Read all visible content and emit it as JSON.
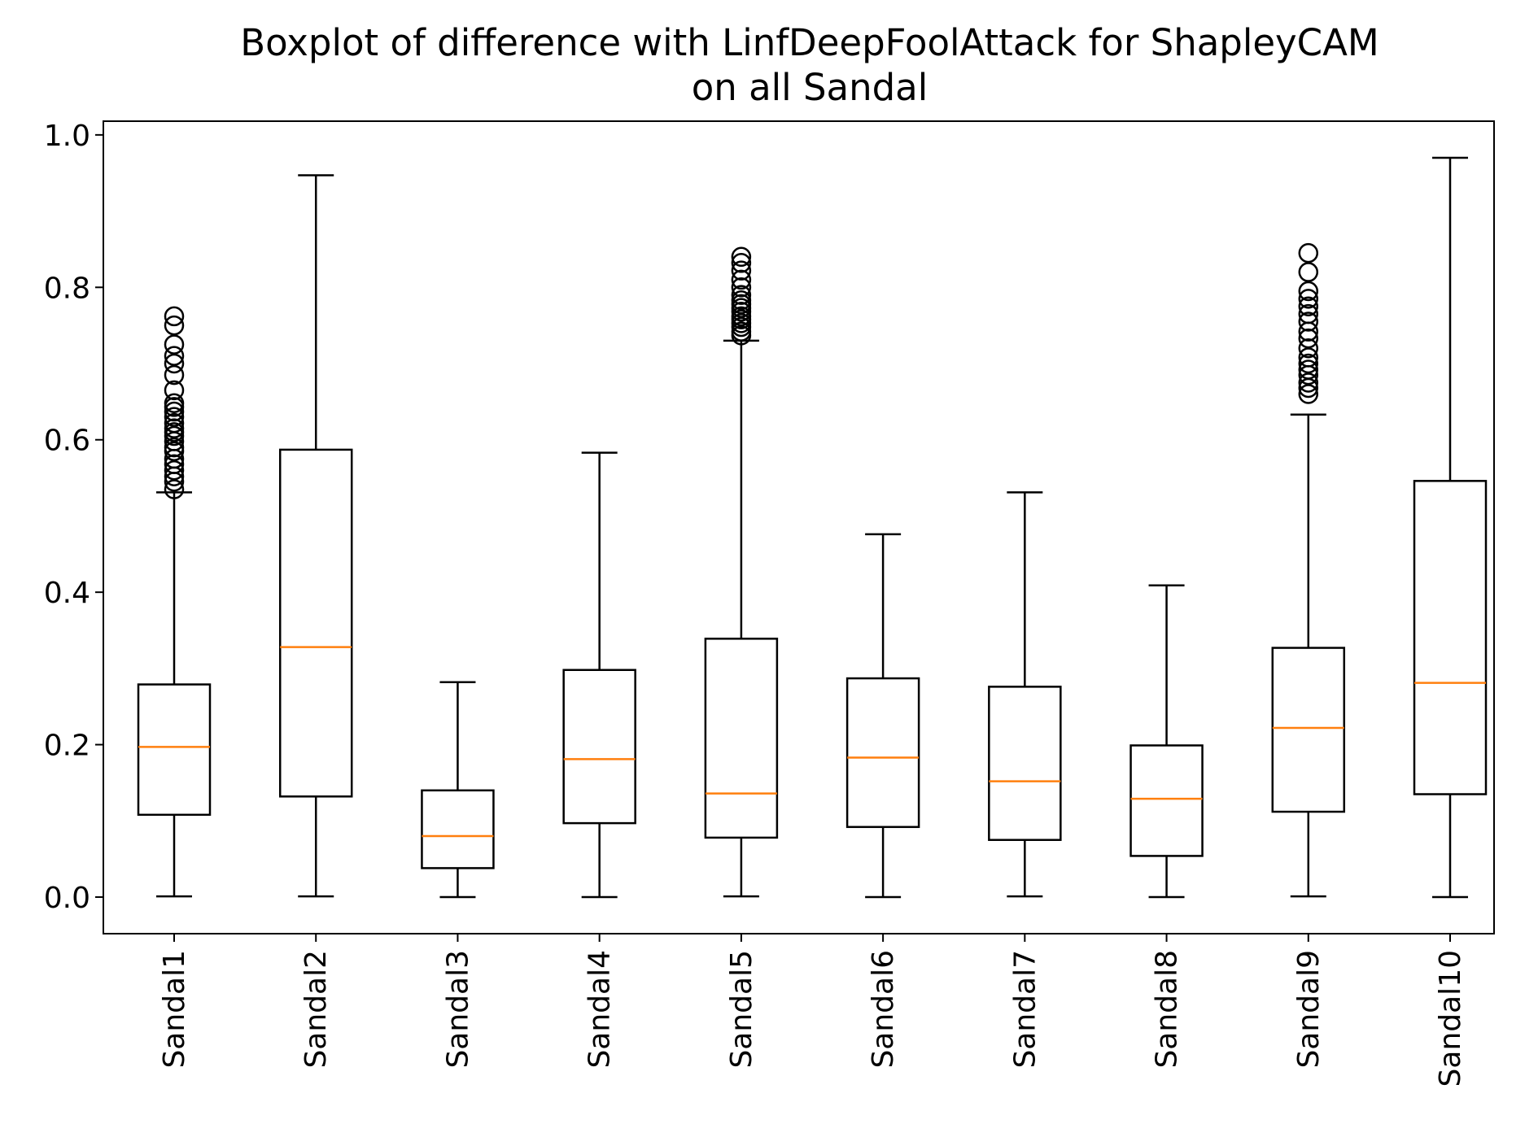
{
  "chart_data": {
    "type": "boxplot",
    "title_lines": [
      "Boxplot of difference with LinfDeepFoolAttack for ShapleyCAM",
      "on all Sandal"
    ],
    "xlabel": "",
    "ylabel": "",
    "ylim": [
      -0.048,
      1.018
    ],
    "yticks": [
      0.0,
      0.2,
      0.4,
      0.6,
      0.8,
      1.0
    ],
    "ytick_labels": [
      "0.0",
      "0.2",
      "0.4",
      "0.6",
      "0.8",
      "1.0"
    ],
    "categories": [
      "Sandal1",
      "Sandal2",
      "Sandal3",
      "Sandal4",
      "Sandal5",
      "Sandal6",
      "Sandal7",
      "Sandal8",
      "Sandal9",
      "Sandal10"
    ],
    "grid": false,
    "colors": {
      "box": "#000000",
      "median": "#ff7f0e",
      "axes": "#000000",
      "background": "#ffffff"
    },
    "boxes": [
      {
        "category": "Sandal1",
        "whisker_low": 0.001,
        "q1": 0.108,
        "median": 0.197,
        "q3": 0.279,
        "whisker_high": 0.531,
        "outliers": [
          0.535,
          0.545,
          0.552,
          0.56,
          0.568,
          0.575,
          0.585,
          0.59,
          0.598,
          0.605,
          0.61,
          0.615,
          0.622,
          0.63,
          0.637,
          0.643,
          0.648,
          0.665,
          0.685,
          0.7,
          0.71,
          0.725,
          0.75,
          0.762
        ]
      },
      {
        "category": "Sandal2",
        "whisker_low": 0.001,
        "q1": 0.132,
        "median": 0.328,
        "q3": 0.587,
        "whisker_high": 0.947,
        "outliers": []
      },
      {
        "category": "Sandal3",
        "whisker_low": 0.0,
        "q1": 0.038,
        "median": 0.08,
        "q3": 0.14,
        "whisker_high": 0.282,
        "outliers": []
      },
      {
        "category": "Sandal4",
        "whisker_low": 0.0,
        "q1": 0.097,
        "median": 0.181,
        "q3": 0.298,
        "whisker_high": 0.583,
        "outliers": []
      },
      {
        "category": "Sandal5",
        "whisker_low": 0.001,
        "q1": 0.078,
        "median": 0.136,
        "q3": 0.339,
        "whisker_high": 0.73,
        "outliers": [
          0.737,
          0.742,
          0.748,
          0.753,
          0.758,
          0.762,
          0.768,
          0.773,
          0.778,
          0.783,
          0.79,
          0.8,
          0.81,
          0.822,
          0.832,
          0.84
        ]
      },
      {
        "category": "Sandal6",
        "whisker_low": 0.0,
        "q1": 0.092,
        "median": 0.183,
        "q3": 0.287,
        "whisker_high": 0.476,
        "outliers": []
      },
      {
        "category": "Sandal7",
        "whisker_low": 0.001,
        "q1": 0.075,
        "median": 0.152,
        "q3": 0.276,
        "whisker_high": 0.531,
        "outliers": []
      },
      {
        "category": "Sandal8",
        "whisker_low": 0.0,
        "q1": 0.054,
        "median": 0.129,
        "q3": 0.199,
        "whisker_high": 0.409,
        "outliers": []
      },
      {
        "category": "Sandal9",
        "whisker_low": 0.001,
        "q1": 0.112,
        "median": 0.222,
        "q3": 0.327,
        "whisker_high": 0.633,
        "outliers": [
          0.66,
          0.668,
          0.675,
          0.685,
          0.692,
          0.7,
          0.708,
          0.72,
          0.733,
          0.742,
          0.755,
          0.765,
          0.775,
          0.785,
          0.795,
          0.82,
          0.845
        ]
      },
      {
        "category": "Sandal10",
        "whisker_low": 0.0,
        "q1": 0.135,
        "median": 0.281,
        "q3": 0.546,
        "whisker_high": 0.97,
        "outliers": []
      }
    ]
  }
}
